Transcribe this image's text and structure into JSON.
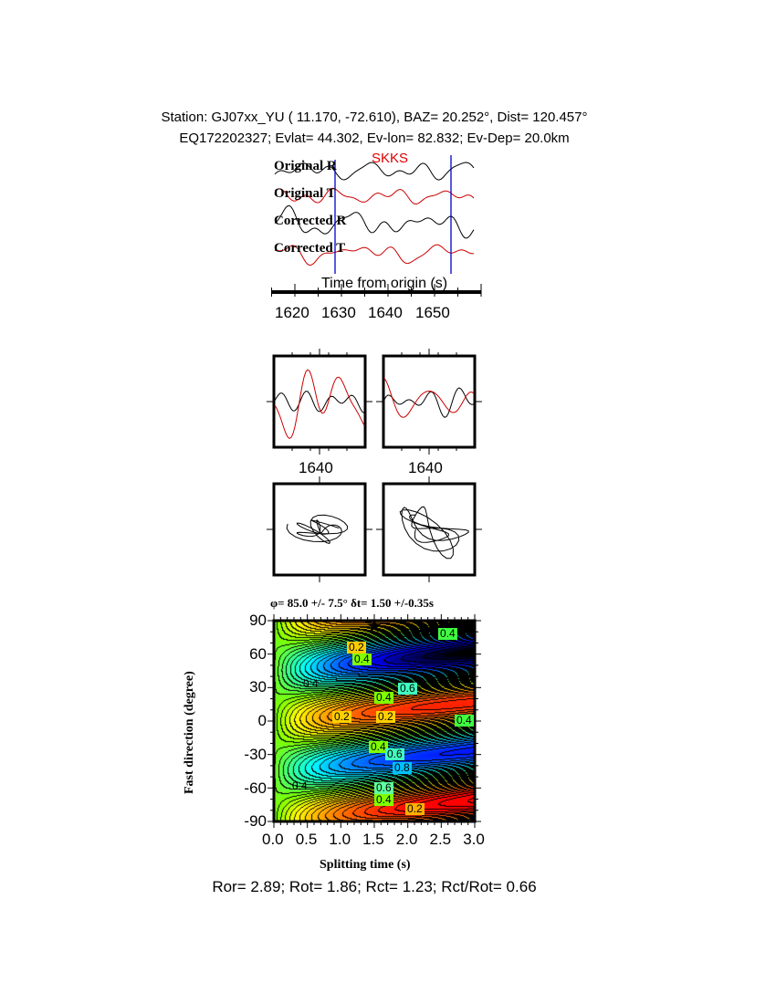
{
  "header": {
    "line1": "Station: GJ07xx_YU (  11.170,  -72.610), BAZ=   20.252°, Dist=  120.457°",
    "line2": "EQ172202327; Evlat=  44.302, Ev-lon=  82.832; Ev-Dep= 20.0km"
  },
  "chart_data": [
    {
      "type": "line",
      "phase_label": "SKKS",
      "traces": [
        "Original R",
        "Original T",
        "Corrected R",
        "Corrected T"
      ],
      "trace_colors": [
        "#000000",
        "#cc0000",
        "#000000",
        "#cc0000"
      ],
      "xlabel": "Time from origin (s)",
      "xticks": [
        "1620",
        "1630",
        "1640",
        "1650"
      ],
      "window_markers": [
        1628.3,
        1653.5
      ],
      "marker_color": "#0000cc"
    },
    {
      "type": "line",
      "panels": [
        {
          "xtick": "1640",
          "series_colors": [
            "#000000",
            "#cc0000"
          ]
        },
        {
          "xtick": "1640",
          "series_colors": [
            "#000000",
            "#cc0000"
          ]
        }
      ]
    },
    {
      "type": "line",
      "panels": [
        "particle-motion-original",
        "particle-motion-corrected"
      ]
    },
    {
      "type": "heatmap",
      "title": "φ= 85.0 +/- 7.5° δt= 1.50 +/-0.35s",
      "xlabel": "Splitting time (s)",
      "ylabel": "Fast direction (degree)",
      "xlim": [
        0,
        3
      ],
      "ylim": [
        -90,
        90
      ],
      "xticks": [
        "0.0",
        "0.5",
        "1.0",
        "1.5",
        "2.0",
        "2.5",
        "3.0"
      ],
      "yticks": [
        "90",
        "60",
        "30",
        "0",
        "-30",
        "-60",
        "-90"
      ],
      "best_fit": {
        "dt": 1.5,
        "phi": 85.0
      },
      "contour_labels": [
        "0.2",
        "0.4",
        "0.4",
        "0.6",
        "0.4",
        "0.4",
        "0.2",
        "0.2",
        "0.4",
        "0.4",
        "0.6",
        "0.8",
        "0.6",
        "0.4",
        "0.2",
        "0.4"
      ],
      "colormap": [
        "#ff0000",
        "#ffb000",
        "#ffff00",
        "#80ff00",
        "#00ffff",
        "#0000ff",
        "#000000"
      ]
    }
  ],
  "footer": "Ror= 2.89; Rot= 1.86; Rct= 1.23; Rct/Rot= 0.66"
}
